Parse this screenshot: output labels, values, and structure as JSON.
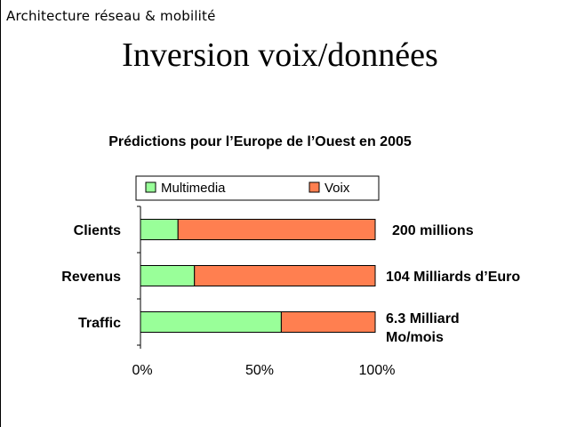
{
  "header": {
    "course_label": "Architecture réseau & mobilité",
    "title": "Inversion voix/données"
  },
  "colors": {
    "multimedia": "#99ff99",
    "voix": "#ff7f50",
    "border": "#000000"
  },
  "chart_data": {
    "type": "bar",
    "orientation": "horizontal",
    "stacked": "percent",
    "title": "Prédictions pour l’Europe de l’Ouest en 2005",
    "categories": [
      "Clients",
      "Revenus",
      "Traffic"
    ],
    "series": [
      {
        "name": "Multimedia",
        "values": [
          16,
          23,
          60
        ]
      },
      {
        "name": "Voix",
        "values": [
          84,
          77,
          40
        ]
      }
    ],
    "annotations": [
      [
        "200 millions"
      ],
      [
        "104 Milliards d’Euro"
      ],
      [
        "6.3 Milliard",
        "Mo/mois"
      ]
    ],
    "x_ticks": [
      "0%",
      "50%",
      "100%"
    ],
    "xlim": [
      0,
      100
    ],
    "grid": false,
    "legend_position": "top"
  }
}
